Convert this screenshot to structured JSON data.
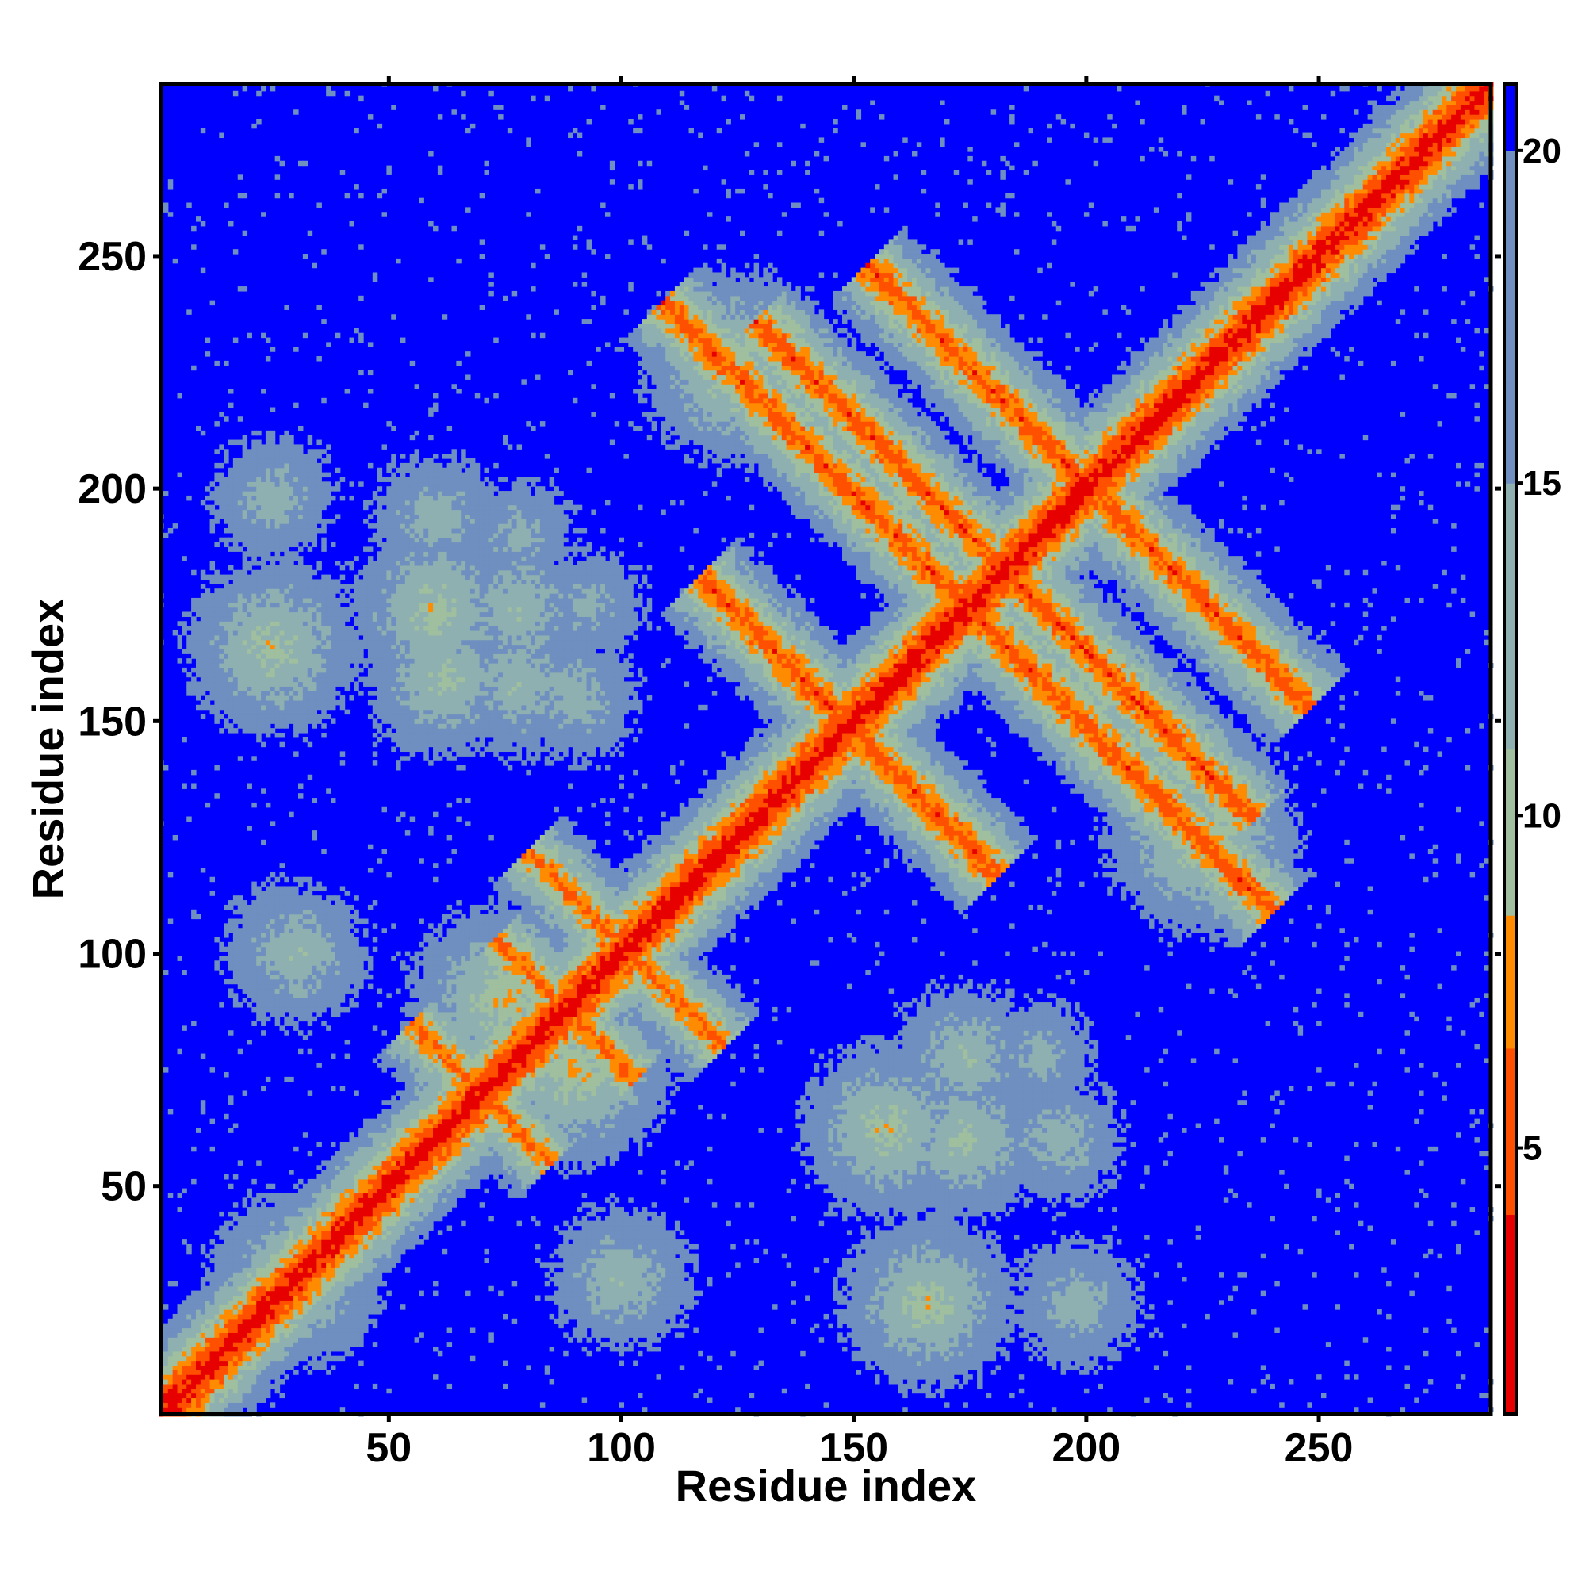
{
  "chart_data": {
    "type": "heatmap",
    "title": "",
    "xlabel": "Residue index",
    "ylabel": "Residue index",
    "xlim": [
      1,
      287
    ],
    "ylim": [
      1,
      287
    ],
    "xticks": [
      50,
      100,
      150,
      200,
      250
    ],
    "yticks": [
      50,
      100,
      150,
      200,
      250
    ],
    "colorbar": {
      "range": [
        1,
        21
      ],
      "ticks": [
        5,
        10,
        15,
        20
      ],
      "colors": {
        "near": "#e60000",
        "mid": "#ff8c00",
        "light": "#9fbf9f",
        "far": "#0000ff"
      }
    },
    "contact_features": [
      {
        "kind": "diagonal",
        "from": 1,
        "to": 287,
        "value": 2
      },
      {
        "kind": "antiparallel",
        "i": 159,
        "j": 139,
        "length": 22,
        "value": 5
      },
      {
        "kind": "antiparallel",
        "i": 196,
        "j": 153,
        "length": 44,
        "value": 5
      },
      {
        "kind": "antiparallel",
        "i": 200,
        "j": 165,
        "length": 36,
        "value": 5
      },
      {
        "kind": "antiparallel",
        "i": 216,
        "j": 185,
        "length": 32,
        "value": 5
      },
      {
        "kind": "antiparallel",
        "i": 108,
        "j": 94,
        "length": 14,
        "value": 6
      },
      {
        "kind": "antiparallel",
        "i": 93,
        "j": 83,
        "length": 10,
        "value": 6
      },
      {
        "kind": "antiparallel",
        "i": 75,
        "j": 65,
        "length": 10,
        "value": 6
      },
      {
        "kind": "cluster",
        "x": 25,
        "y": 198,
        "value": 12
      },
      {
        "kind": "cluster",
        "x": 25,
        "y": 166,
        "value": 9
      },
      {
        "kind": "cluster",
        "x": 60,
        "y": 194,
        "value": 12
      },
      {
        "kind": "cluster",
        "x": 60,
        "y": 174,
        "value": 9
      },
      {
        "kind": "cluster",
        "x": 62,
        "y": 159,
        "value": 10
      },
      {
        "kind": "cluster",
        "x": 78,
        "y": 190,
        "value": 13
      },
      {
        "kind": "cluster",
        "x": 78,
        "y": 174,
        "value": 11
      },
      {
        "kind": "cluster",
        "x": 78,
        "y": 158,
        "value": 11
      },
      {
        "kind": "cluster",
        "x": 93,
        "y": 175,
        "value": 13
      },
      {
        "kind": "cluster",
        "x": 90,
        "y": 155,
        "value": 12
      },
      {
        "kind": "cluster",
        "x": 125,
        "y": 226,
        "value": 8
      },
      {
        "kind": "cluster",
        "x": 225,
        "y": 125,
        "value": 8
      },
      {
        "kind": "cluster",
        "x": 157,
        "y": 62,
        "value": 9
      },
      {
        "kind": "cluster",
        "x": 174,
        "y": 60,
        "value": 10
      },
      {
        "kind": "cluster",
        "x": 194,
        "y": 60,
        "value": 12
      },
      {
        "kind": "cluster",
        "x": 166,
        "y": 25,
        "value": 9
      },
      {
        "kind": "cluster",
        "x": 198,
        "y": 25,
        "value": 12
      },
      {
        "kind": "cluster",
        "x": 174,
        "y": 78,
        "value": 11
      },
      {
        "kind": "cluster",
        "x": 190,
        "y": 78,
        "value": 13
      },
      {
        "kind": "cluster",
        "x": 30,
        "y": 100,
        "value": 11
      },
      {
        "kind": "cluster",
        "x": 100,
        "y": 30,
        "value": 11
      },
      {
        "kind": "cluster",
        "x": 30,
        "y": 30,
        "value": 9
      },
      {
        "kind": "cluster",
        "x": 90,
        "y": 75,
        "value": 8
      },
      {
        "kind": "cluster",
        "x": 75,
        "y": 90,
        "value": 8
      }
    ]
  }
}
